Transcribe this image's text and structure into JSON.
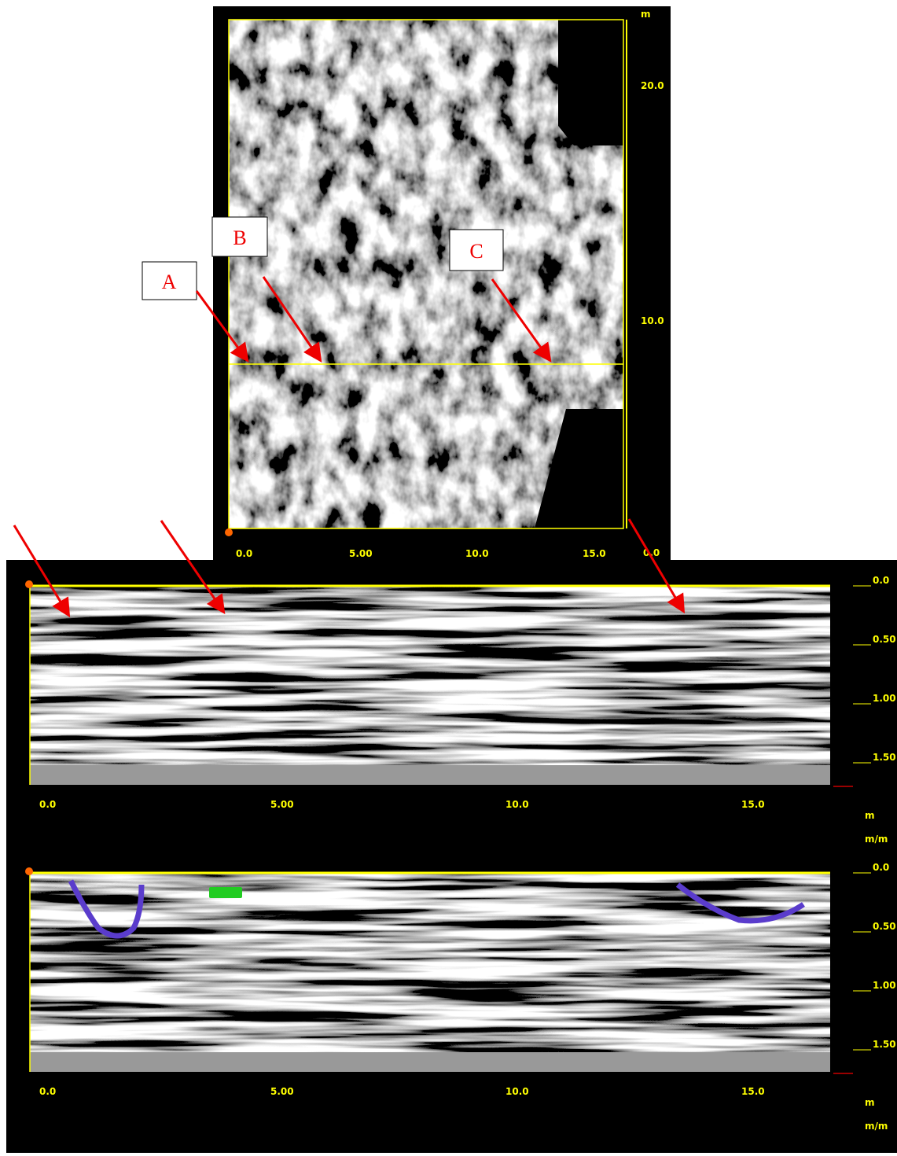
{
  "plan_view": {
    "markers": [
      "A",
      "B",
      "C"
    ],
    "unit": "m",
    "depth_ticks": [
      "20.0",
      "10.0",
      "0.0"
    ],
    "x_ticks": [
      "0.0",
      "5.00",
      "10.0",
      "15.0"
    ]
  },
  "profiles": [
    {
      "depth_ticks": [
        "0.0",
        "0.50",
        "1.00",
        "1.50"
      ],
      "x_ticks": [
        "0.0",
        "5.00",
        "10.0",
        "15.0"
      ],
      "units": [
        "m",
        "m/m"
      ]
    },
    {
      "depth_ticks": [
        "0.0",
        "0.50",
        "1.00",
        "1.50"
      ],
      "x_ticks": [
        "0.0",
        "5.00",
        "10.0",
        "15.0"
      ],
      "units": [
        "m",
        "m/m"
      ]
    }
  ]
}
